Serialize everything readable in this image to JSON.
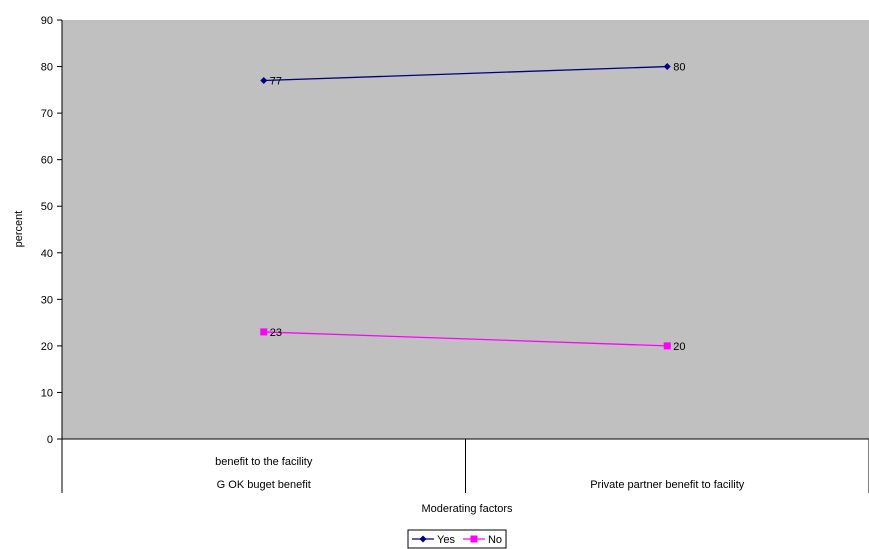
{
  "chart_data": {
    "type": "line",
    "categories": [
      [
        "benefit to the facility",
        "G OK buget benefit"
      ],
      [
        "Private partner benefit to facility"
      ]
    ],
    "series": [
      {
        "name": "Yes",
        "values": [
          77,
          80
        ],
        "color": "#000080",
        "marker": "diamond"
      },
      {
        "name": "No",
        "values": [
          23,
          20
        ],
        "color": "#ff00ff",
        "marker": "square"
      }
    ],
    "xlabel": "Moderating factors",
    "ylabel": "percent",
    "ylim": [
      0,
      90
    ],
    "yticks": [
      0,
      10,
      20,
      30,
      40,
      50,
      60,
      70,
      80,
      90
    ],
    "plot_background": "#c0c0c0",
    "grid": false,
    "data_labels": true,
    "legend_position": "bottom"
  }
}
